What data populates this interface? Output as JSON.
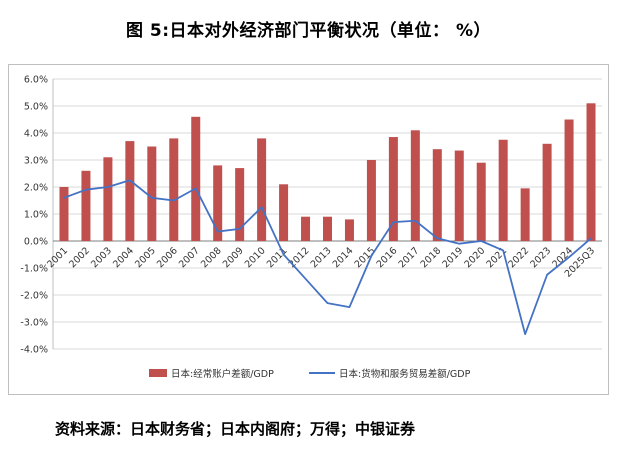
{
  "title": "图 5:日本对外经济部门平衡状况（单位： %）",
  "source": "资料来源：日本财务省；日本内阁府；万得；中银证券",
  "colors": {
    "bar": "#C0504D",
    "line": "#4472C4",
    "grid": "#d9d9d9",
    "axis": "#7f7f7f",
    "text": "#333333"
  },
  "chart_data": {
    "type": "bar",
    "subtype": "bar+line combo",
    "categories": [
      "2001",
      "2002",
      "2003",
      "2004",
      "2005",
      "2006",
      "2007",
      "2008",
      "2009",
      "2010",
      "2011",
      "2012",
      "2013",
      "2014",
      "2015",
      "2016",
      "2017",
      "2018",
      "2019",
      "2020",
      "2021",
      "2022",
      "2023",
      "2024",
      "2025Q3"
    ],
    "series": [
      {
        "name": "日本:经常账户差额/GDP",
        "type": "bar",
        "color": "#C0504D",
        "values": [
          2.0,
          2.6,
          3.1,
          3.7,
          3.5,
          3.8,
          4.6,
          2.8,
          2.7,
          3.8,
          2.1,
          0.9,
          0.9,
          0.8,
          3.0,
          3.85,
          4.1,
          3.4,
          3.35,
          2.9,
          3.75,
          1.95,
          3.6,
          4.5,
          5.1
        ]
      },
      {
        "name": "日本:货物和服务贸易差额/GDP",
        "type": "line",
        "color": "#4472C4",
        "values": [
          1.6,
          1.9,
          2.0,
          2.25,
          1.6,
          1.5,
          1.95,
          0.35,
          0.45,
          1.25,
          -0.5,
          -1.4,
          -2.3,
          -2.45,
          -0.55,
          0.7,
          0.75,
          0.1,
          -0.1,
          0.0,
          -0.35,
          -3.45,
          -1.25,
          -0.6,
          0.1
        ]
      }
    ],
    "title": "图 5:日本对外经济部门平衡状况（单位： %）",
    "xlabel": "",
    "ylabel": "",
    "ylim": [
      -4.0,
      6.0
    ],
    "ytick_step": 1.0,
    "ytick_labels": [
      "-4.0%",
      "-3.0%",
      "-2.0%",
      "-1.0%",
      "0.0%",
      "1.0%",
      "2.0%",
      "3.0%",
      "4.0%",
      "5.0%",
      "6.0%"
    ],
    "grid": true,
    "legend_position": "bottom"
  }
}
